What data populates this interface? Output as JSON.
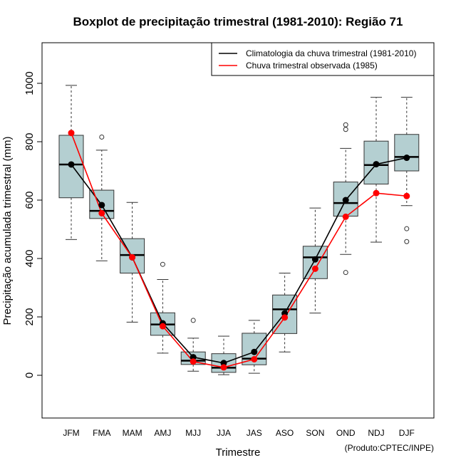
{
  "chart_data": {
    "type": "box",
    "title": "Boxplot de precipitação trimestral (1981-2010): Região 71",
    "xlabel": "Trimestre",
    "ylabel": "Precipitação acumulada trimestral (mm)",
    "ylim": [
      -140,
      1140
    ],
    "yticks": [
      0,
      200,
      400,
      600,
      800,
      1000
    ],
    "categories": [
      "JFM",
      "FMA",
      "MAM",
      "AMJ",
      "MJJ",
      "JJA",
      "JAS",
      "ASO",
      "SON",
      "OND",
      "NDJ",
      "DJF"
    ],
    "boxes": [
      {
        "min": 465,
        "q1": 608,
        "median": 722,
        "q3": 822,
        "max": 993,
        "outliers": []
      },
      {
        "min": 392,
        "q1": 537,
        "median": 563,
        "q3": 634,
        "max": 771,
        "outliers": [
          816
        ]
      },
      {
        "min": 182,
        "q1": 350,
        "median": 412,
        "q3": 468,
        "max": 592,
        "outliers": []
      },
      {
        "min": 76,
        "q1": 137,
        "median": 174,
        "q3": 214,
        "max": 328,
        "outliers": [
          380
        ]
      },
      {
        "min": 14,
        "q1": 37,
        "median": 50,
        "q3": 80,
        "max": 127,
        "outliers": [
          188
        ]
      },
      {
        "min": 2,
        "q1": 10,
        "median": 26,
        "q3": 74,
        "max": 134,
        "outliers": []
      },
      {
        "min": 7,
        "q1": 36,
        "median": 57,
        "q3": 144,
        "max": 188,
        "outliers": []
      },
      {
        "min": 80,
        "q1": 143,
        "median": 226,
        "q3": 275,
        "max": 350,
        "outliers": []
      },
      {
        "min": 213,
        "q1": 331,
        "median": 404,
        "q3": 442,
        "max": 573,
        "outliers": []
      },
      {
        "min": 414,
        "q1": 545,
        "median": 590,
        "q3": 662,
        "max": 777,
        "outliers": [
          352,
          842,
          858
        ]
      },
      {
        "min": 456,
        "q1": 655,
        "median": 720,
        "q3": 802,
        "max": 952,
        "outliers": []
      },
      {
        "min": 581,
        "q1": 700,
        "median": 748,
        "q3": 825,
        "max": 952,
        "outliers": [
          458,
          502
        ]
      }
    ],
    "series": [
      {
        "name": "Climatologia da chuva trimestral (1981-2010)",
        "color": "#000000",
        "values": [
          722,
          583,
          404,
          178,
          62,
          42,
          80,
          212,
          397,
          600,
          723,
          745
        ]
      },
      {
        "name": "Chuva trimestral observada (1985)",
        "color": "#ff0000",
        "values": [
          830,
          555,
          404,
          168,
          47,
          27,
          55,
          198,
          365,
          543,
          624,
          614
        ]
      }
    ],
    "legend": {
      "position": "top-right"
    },
    "box_fill": "#b4cfd1",
    "credit": "(Produto:CPTEC/INPE)"
  }
}
